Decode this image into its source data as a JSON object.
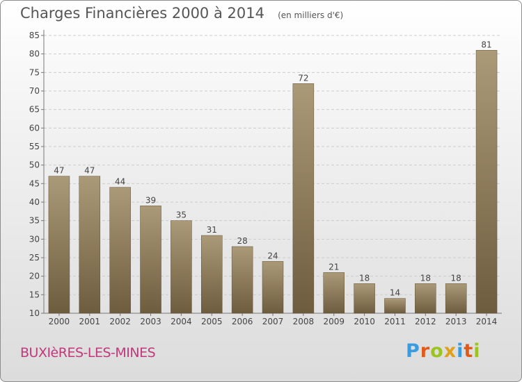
{
  "title": "Charges Financières 2000 à 2014",
  "unit": "(en milliers d'€)",
  "commune": "BUXIèRES-LES-MINES",
  "logo": {
    "text": "Proxiti",
    "letters": [
      {
        "ch": "P",
        "color": "#3b9be0"
      },
      {
        "ch": "r",
        "color": "#e05a1a"
      },
      {
        "ch": "o",
        "color": "#9bc41e"
      },
      {
        "ch": "x",
        "color": "#e0a11a"
      },
      {
        "ch": "i",
        "color": "#3b9be0"
      },
      {
        "ch": "t",
        "color": "#e05a1a"
      },
      {
        "ch": "i",
        "color": "#9bc41e"
      }
    ]
  },
  "colors": {
    "bar_top": "#ab9a78",
    "bar_bottom": "#6e5c3f",
    "grid": "#cccccc",
    "text": "#444444"
  },
  "chart_data": {
    "type": "bar",
    "title": "Charges Financières 2000 à 2014",
    "subtitle": "(en milliers d'€)",
    "categories": [
      "2000",
      "2001",
      "2002",
      "2003",
      "2004",
      "2005",
      "2006",
      "2007",
      "2008",
      "2009",
      "2010",
      "2011",
      "2012",
      "2013",
      "2014"
    ],
    "values": [
      47,
      47,
      44,
      39,
      35,
      31,
      28,
      24,
      72,
      21,
      18,
      14,
      18,
      18,
      81
    ],
    "ylim": [
      10,
      85
    ],
    "yticks": [
      10,
      15,
      20,
      25,
      30,
      35,
      40,
      45,
      50,
      55,
      60,
      65,
      70,
      75,
      80,
      85
    ],
    "grid": true,
    "xlabel": "",
    "ylabel": ""
  }
}
